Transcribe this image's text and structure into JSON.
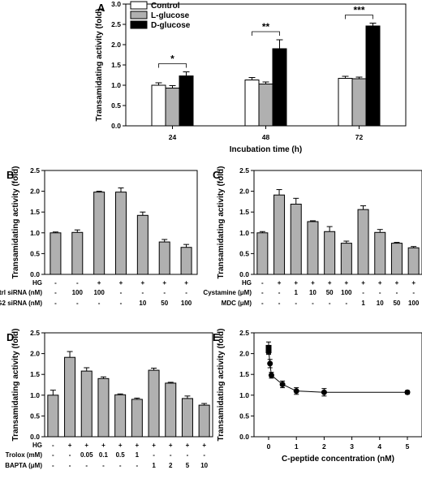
{
  "chart_data": [
    {
      "panel": "A",
      "type": "bar",
      "xlabel": "Incubation time (h)",
      "ylabel": "Transamidating activity (fold)",
      "ylim": [
        0,
        3.0
      ],
      "yticks": [
        "0.0",
        "0.5",
        "1.0",
        "1.5",
        "2.0",
        "2.5",
        "3.0"
      ],
      "categories": [
        "24",
        "48",
        "72"
      ],
      "legend_position": "top-left",
      "series": [
        {
          "name": "Control",
          "color": "#ffffff",
          "values": [
            1.0,
            1.13,
            1.17
          ],
          "errors": [
            0.06,
            0.06,
            0.05
          ]
        },
        {
          "name": "L-glucose",
          "color": "#b0b0b0",
          "values": [
            0.93,
            1.03,
            1.16
          ],
          "errors": [
            0.06,
            0.05,
            0.04
          ]
        },
        {
          "name": "D-glucose",
          "color": "#000000",
          "values": [
            1.23,
            1.9,
            2.46
          ],
          "errors": [
            0.1,
            0.22,
            0.07
          ]
        }
      ],
      "significance": [
        "*",
        "**",
        "***"
      ]
    },
    {
      "panel": "B",
      "type": "bar",
      "ylabel": "Transamidating activity (fold)",
      "ylim": [
        0,
        2.5
      ],
      "yticks": [
        "0.0",
        "0.5",
        "1.0",
        "1.5",
        "2.0",
        "2.5"
      ],
      "values": [
        1.0,
        1.01,
        1.98,
        1.98,
        1.42,
        0.78,
        0.65
      ],
      "errors": [
        0.02,
        0.06,
        0.02,
        0.1,
        0.08,
        0.06,
        0.07
      ],
      "bar_color": "#b0b0b0",
      "conditions": [
        {
          "label": "HG",
          "values": [
            "-",
            "-",
            "+",
            "+",
            "+",
            "+",
            "+"
          ]
        },
        {
          "label": "Ctrl siRNA (nM)",
          "values": [
            "-",
            "100",
            "100",
            "-",
            "-",
            "-",
            "-"
          ]
        },
        {
          "label": "TG2 siRNA (nM)",
          "values": [
            "-",
            "-",
            "-",
            "-",
            "10",
            "50",
            "100"
          ]
        }
      ]
    },
    {
      "panel": "C",
      "type": "bar",
      "ylabel": "Transamidating activity (fold)",
      "ylim": [
        0,
        2.5
      ],
      "yticks": [
        "0.0",
        "0.5",
        "1.0",
        "1.5",
        "2.0",
        "2.5"
      ],
      "values": [
        1.0,
        1.91,
        1.69,
        1.27,
        1.03,
        0.75,
        1.56,
        1.01,
        0.75,
        0.64
      ],
      "errors": [
        0.03,
        0.13,
        0.14,
        0.02,
        0.12,
        0.05,
        0.09,
        0.07,
        0.02,
        0.03
      ],
      "bar_color": "#b0b0b0",
      "conditions": [
        {
          "label": "HG",
          "values": [
            "-",
            "+",
            "+",
            "+",
            "+",
            "+",
            "+",
            "+",
            "+",
            "+"
          ]
        },
        {
          "label": "Cystamine (μM)",
          "values": [
            "-",
            "-",
            "1",
            "10",
            "50",
            "100",
            "-",
            "-",
            "-",
            "-"
          ]
        },
        {
          "label": "MDC (μM)",
          "values": [
            "-",
            "-",
            "-",
            "-",
            "-",
            "-",
            "1",
            "10",
            "50",
            "100"
          ]
        }
      ]
    },
    {
      "panel": "D",
      "type": "bar",
      "ylabel": "Transamidating activity (fold)",
      "ylim": [
        0,
        2.5
      ],
      "yticks": [
        "0.0",
        "0.5",
        "1.0",
        "1.5",
        "2.0",
        "2.5"
      ],
      "values": [
        1.0,
        1.91,
        1.58,
        1.4,
        1.01,
        0.9,
        1.6,
        1.29,
        0.92,
        0.76
      ],
      "errors": [
        0.12,
        0.14,
        0.08,
        0.04,
        0.02,
        0.03,
        0.05,
        0.02,
        0.06,
        0.04
      ],
      "bar_color": "#b0b0b0",
      "conditions": [
        {
          "label": "HG",
          "values": [
            "-",
            "+",
            "+",
            "+",
            "+",
            "+",
            "+",
            "+",
            "+",
            "+"
          ]
        },
        {
          "label": "Trolox (mM)",
          "values": [
            "-",
            "-",
            "0.05",
            "0.1",
            "0.5",
            "1",
            "-",
            "-",
            "-",
            "-"
          ]
        },
        {
          "label": "BAPTA (μM)",
          "values": [
            "-",
            "-",
            "-",
            "-",
            "-",
            "-",
            "1",
            "2",
            "5",
            "10"
          ]
        }
      ]
    },
    {
      "panel": "E",
      "type": "line",
      "xlabel": "C-peptide concentration (nM)",
      "ylabel": "Transamidating activity (fold)",
      "xlim": [
        0,
        5
      ],
      "ylim": [
        0,
        2.5
      ],
      "xticks": [
        "0",
        "1",
        "2",
        "3",
        "4",
        "5"
      ],
      "yticks": [
        "0.0",
        "0.5",
        "1.0",
        "1.5",
        "2.0",
        "2.5"
      ],
      "points": [
        {
          "x": 0,
          "y": 2.14,
          "err": 0.14
        },
        {
          "x": 0,
          "y": 2.08,
          "err": 0.1
        },
        {
          "x": 0.05,
          "y": 1.76,
          "err": 0.1
        },
        {
          "x": 0.1,
          "y": 1.48,
          "err": 0.07
        },
        {
          "x": 0.5,
          "y": 1.26,
          "err": 0.08
        },
        {
          "x": 1,
          "y": 1.1,
          "err": 0.08
        },
        {
          "x": 2,
          "y": 1.07,
          "err": 0.09
        },
        {
          "x": 5,
          "y": 1.07,
          "err": 0.04
        }
      ]
    }
  ]
}
